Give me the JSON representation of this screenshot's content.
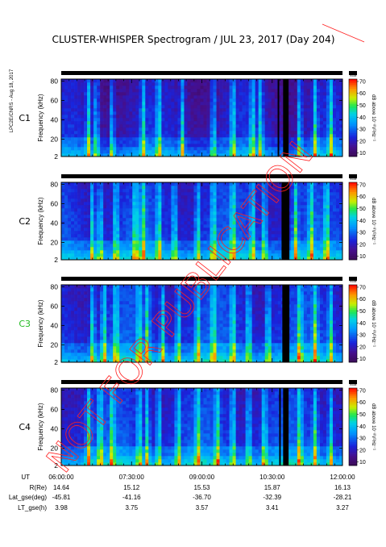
{
  "title": "CLUSTER-WHISPER Spectrogram / JUL 23, 2017 (Day 204)",
  "side_note": "LPC2E/CNRS - Aug 18, 2017",
  "watermark": "NOT FOR PUBLICATION",
  "colors": {
    "background": "#ffffff",
    "axis": "#000000",
    "c3_label": "#22bb22",
    "watermark": "#ff2020",
    "spectrum_low": "#3a0a55",
    "spectrum_high": "#ff0000"
  },
  "colorbar": {
    "ticks": [
      "70",
      "60",
      "50",
      "40",
      "30",
      "20",
      "10"
    ],
    "label": "dB above 10⁻⁸V²Hz⁻¹",
    "header": "mode",
    "range": [
      7,
      72
    ]
  },
  "chart_data": [
    {
      "type": "heatmap",
      "panel": "C1",
      "ylabel": "Frequency (kHz)",
      "yticks": [
        "2",
        "20",
        "40",
        "60",
        "80"
      ],
      "ylim": [
        2,
        82
      ],
      "xlim": [
        "06:00:00",
        "12:00:00"
      ],
      "gaps_ut": [
        [
          "10:37",
          "10:39"
        ],
        [
          "10:44",
          "10:51"
        ]
      ],
      "bright_bursts_ut": [
        "06:35",
        "06:45",
        "07:05",
        "07:45",
        "08:05",
        "08:35",
        "09:15",
        "09:40",
        "10:05",
        "10:15",
        "11:05",
        "11:25",
        "11:45"
      ],
      "background_db": 20
    },
    {
      "type": "heatmap",
      "panel": "C2",
      "ylabel": "Frequency (kHz)",
      "yticks": [
        "2",
        "20",
        "40",
        "60",
        "80"
      ],
      "ylim": [
        2,
        82
      ],
      "xlim": [
        "06:00:00",
        "12:00:00"
      ],
      "gaps_ut": [
        [
          "10:42",
          "10:52"
        ]
      ],
      "bright_bursts_ut": [
        "06:40",
        "06:50",
        "07:10",
        "07:35",
        "07:45",
        "08:05",
        "08:25",
        "08:55",
        "09:15",
        "09:40",
        "10:05",
        "10:20",
        "11:00",
        "11:20",
        "11:40"
      ],
      "background_db": 25
    },
    {
      "type": "heatmap",
      "panel": "C3",
      "ylabel": "Frequency (kHz)",
      "yticks": [
        "2",
        "20",
        "40",
        "60",
        "80"
      ],
      "ylim": [
        2,
        82
      ],
      "xlim": [
        "06:00:00",
        "12:00:00"
      ],
      "gaps_ut": [
        [
          "10:43",
          "10:52"
        ]
      ],
      "bright_bursts_ut": [
        "06:40",
        "06:55",
        "07:10",
        "07:40",
        "07:50",
        "08:10",
        "08:30",
        "08:55",
        "09:15",
        "09:40",
        "10:00",
        "10:25",
        "11:05",
        "11:25",
        "11:45"
      ],
      "background_db": 25
    },
    {
      "type": "heatmap",
      "panel": "C4",
      "ylabel": "Frequency (kHz)",
      "yticks": [
        "2",
        "20",
        "40",
        "60",
        "80"
      ],
      "ylim": [
        2,
        82
      ],
      "xlim": [
        "06:00:00",
        "12:00:00"
      ],
      "gaps_ut": [
        [
          "10:39",
          "10:41"
        ],
        [
          "10:44",
          "10:51"
        ]
      ],
      "bright_bursts_ut": [
        "06:35",
        "06:50",
        "07:05",
        "07:40",
        "07:50",
        "08:05",
        "08:30",
        "08:55",
        "09:20",
        "09:40",
        "10:00",
        "10:20",
        "11:05",
        "11:25",
        "11:45"
      ],
      "background_db": 25
    }
  ],
  "panel_label_colors": [
    "#000000",
    "#000000",
    "#22bb22",
    "#000000"
  ],
  "orbit": {
    "ut_label": "UT",
    "times": [
      "06:00:00",
      "07:30:00",
      "09:00:00",
      "10:30:00",
      "12:00:00"
    ],
    "rows": [
      {
        "label": "R(Re)",
        "values": [
          "14.64",
          "15.12",
          "15.53",
          "15.87",
          "16.13"
        ]
      },
      {
        "label": "Lat_gse(deg)",
        "values": [
          "-45.81",
          "-41.16",
          "-36.70",
          "-32.39",
          "-28.21"
        ]
      },
      {
        "label": "LT_gse(h)",
        "values": [
          "3.98",
          "3.75",
          "3.57",
          "3.41",
          "3.27"
        ]
      }
    ]
  }
}
